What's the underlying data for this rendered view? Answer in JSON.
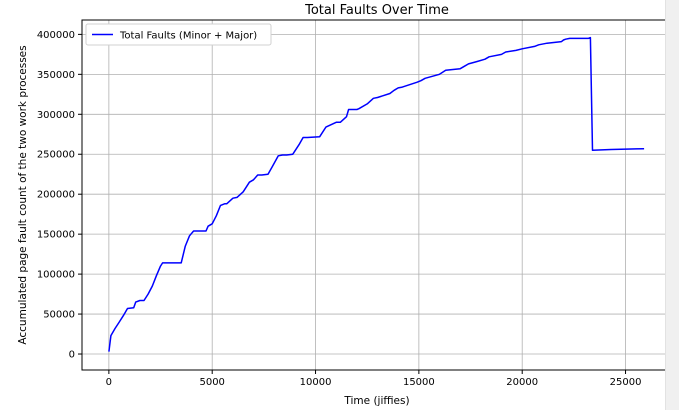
{
  "colors": {
    "line": "#0000ff",
    "grid": "#b0b0b0",
    "axis": "#000000",
    "background": "#ffffff"
  },
  "chart_data": {
    "type": "line",
    "title": "Total Faults Over Time",
    "xlabel": "Time (jiffies)",
    "ylabel": "Accumulated page fault count of the two work processes",
    "xlim": [
      -1300,
      27200
    ],
    "ylim": [
      -20000,
      418000
    ],
    "xticks": [
      0,
      5000,
      10000,
      15000,
      20000,
      25000
    ],
    "xtick_labels": [
      "0",
      "5000",
      "10000",
      "15000",
      "20000",
      "25000"
    ],
    "yticks": [
      0,
      50000,
      100000,
      150000,
      200000,
      250000,
      300000,
      350000,
      400000
    ],
    "ytick_labels": [
      "0",
      "50000",
      "100000",
      "150000",
      "200000",
      "250000",
      "300000",
      "350000",
      "400000"
    ],
    "grid": true,
    "legend": {
      "placement": "top-left",
      "entries": [
        "Total Faults (Minor + Major)"
      ]
    },
    "series": [
      {
        "name": "Total Faults (Minor + Major)",
        "color": "#0000ff",
        "x": [
          0,
          100,
          300,
          500,
          700,
          900,
          1200,
          1300,
          1500,
          1700,
          1900,
          2100,
          2300,
          2500,
          2600,
          2800,
          3000,
          3300,
          3500,
          3700,
          3900,
          4100,
          4300,
          4700,
          4800,
          5000,
          5200,
          5400,
          5600,
          5700,
          6000,
          6200,
          6500,
          6800,
          7000,
          7200,
          7400,
          7700,
          7900,
          8200,
          8400,
          8600,
          8900,
          9200,
          9400,
          9600,
          10200,
          10500,
          11000,
          11200,
          11500,
          11600,
          12000,
          12100,
          12500,
          12800,
          13000,
          13600,
          13800,
          14000,
          14200,
          14900,
          15100,
          15300,
          16000,
          16300,
          17000,
          17200,
          17400,
          17800,
          18200,
          18400,
          19000,
          19200,
          19700,
          20000,
          20600,
          20800,
          21200,
          21900,
          22000,
          22100,
          22300,
          23200,
          23300,
          23400,
          24300,
          25900
        ],
        "y": [
          3000,
          23000,
          32000,
          40000,
          48000,
          57000,
          58000,
          65000,
          67000,
          67000,
          75000,
          85000,
          98000,
          110000,
          114000,
          114000,
          114000,
          114000,
          114000,
          135000,
          148000,
          154000,
          154000,
          154000,
          160000,
          163000,
          173000,
          186000,
          188000,
          188000,
          195000,
          196000,
          203000,
          215000,
          218000,
          224000,
          224000,
          225000,
          234000,
          248000,
          249000,
          249000,
          250000,
          262000,
          271000,
          271000,
          272000,
          284000,
          290000,
          290000,
          297000,
          306000,
          306000,
          307000,
          313000,
          320000,
          321000,
          326000,
          330000,
          333000,
          334000,
          340000,
          342000,
          345000,
          350000,
          355000,
          357000,
          360000,
          363000,
          366000,
          369000,
          372000,
          375000,
          378000,
          380000,
          382000,
          385000,
          387000,
          389000,
          391000,
          393000,
          394000,
          395000,
          395000,
          396000,
          255000,
          256000,
          257000
        ]
      }
    ]
  }
}
